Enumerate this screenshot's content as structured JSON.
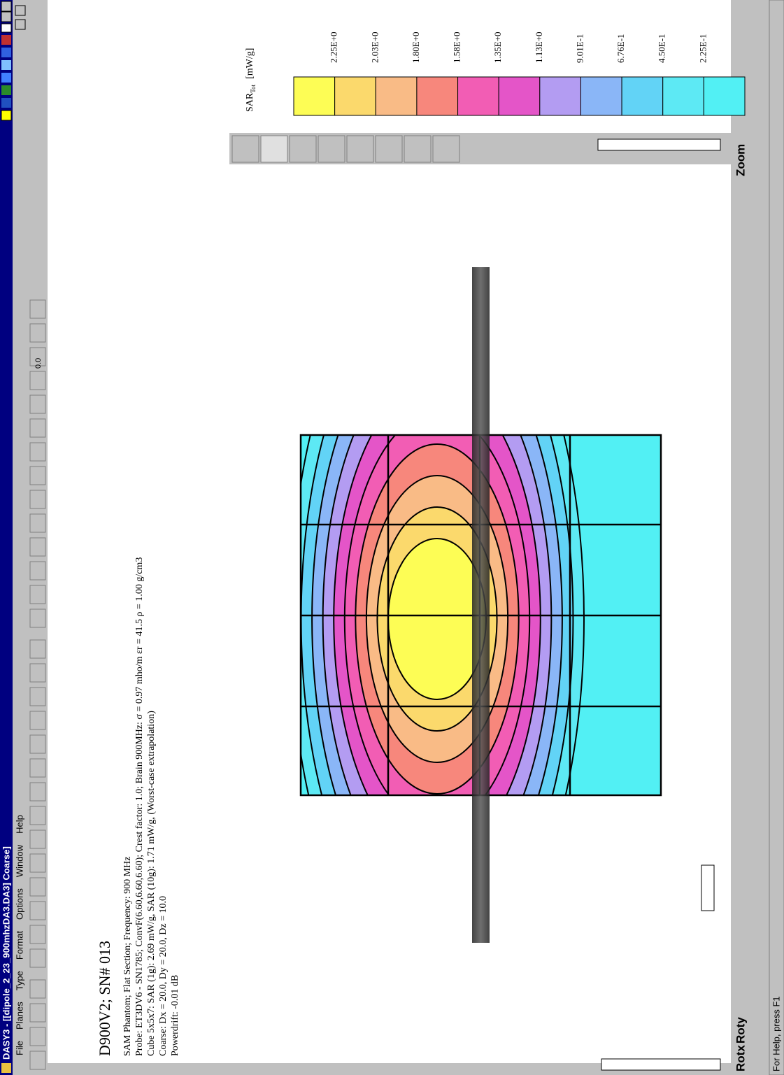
{
  "title_bar": "DASY3 - [[dipole_2_23_900mhzDA3.DA3]  Coarse]",
  "menu": [
    "File",
    "Planes",
    "Type",
    "Format",
    "Options",
    "Window",
    "Help"
  ],
  "toolbar_label": "0.0",
  "info": {
    "title": "D900V2; SN# 013",
    "lines": [
      "SAM Phantom; Flat Section; Frequency: 900 MHz",
      "Probe: ET3DV6 - SN1785; ConvF(6.60,6.60,6.60); Crest factor: 1.0; Brain 900MHz: σ = 0.97 mho/m εr = 41.5 ρ = 1.00 g/cm3",
      "Cube 5x5x7: SAR (1g): 2.69   mW/g, SAR (10g): 1.71   mW/g, (Worst-case extrapolation)",
      "Coarse: Dx = 20.0, Dy = 20.0, Dz = 10.0",
      "Powerdrift: -0.01 dB"
    ]
  },
  "legend": {
    "title": "SAR",
    "subscript": "Tot",
    "unit": "[mW/g]",
    "labels": [
      "2.25E+0",
      "2.03E+0",
      "1.80E+0",
      "1.58E+0",
      "1.35E+0",
      "1.13E+0",
      "9.01E-1",
      "6.76E-1",
      "4.50E-1",
      "2.25E-1"
    ],
    "colors": [
      "#fdfd55",
      "#fbd96c",
      "#f9bb86",
      "#f7877c",
      "#f25db4",
      "#e455c8",
      "#b39cf2",
      "#8ab6f7",
      "#62d3f6",
      "#5de9f4",
      "#52f0f4"
    ]
  },
  "controls": {
    "zoom": "Zoom",
    "rotx": "Rotx",
    "roty": "Roty"
  },
  "status": "For Help, press F1"
}
